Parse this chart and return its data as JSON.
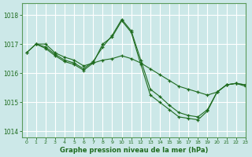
{
  "background_color": "#cce8e8",
  "grid_color": "#ffffff",
  "line_color": "#1e6b1e",
  "marker_color": "#1e6b1e",
  "xlabel": "Graphe pression niveau de la mer (hPa)",
  "xlim": [
    -0.5,
    23
  ],
  "ylim": [
    1013.8,
    1018.4
  ],
  "yticks": [
    1014,
    1015,
    1016,
    1017,
    1018
  ],
  "xticks": [
    0,
    1,
    2,
    3,
    4,
    5,
    6,
    7,
    8,
    9,
    10,
    11,
    12,
    13,
    14,
    15,
    16,
    17,
    18,
    19,
    20,
    21,
    22,
    23
  ],
  "series": [
    {
      "x": [
        0,
        1,
        2,
        3,
        4,
        5,
        6,
        7,
        8,
        9,
        10,
        11,
        12,
        13,
        14,
        15,
        16,
        17,
        18,
        19,
        20,
        21,
        22,
        23
      ],
      "y": [
        1016.7,
        1017.0,
        1017.0,
        1016.7,
        1016.55,
        1016.45,
        1016.25,
        1016.35,
        1016.45,
        1016.5,
        1016.6,
        1016.5,
        1016.35,
        1016.15,
        1015.95,
        1015.75,
        1015.55,
        1015.45,
        1015.35,
        1015.25,
        1015.35,
        1015.6,
        1015.65,
        1015.6
      ]
    },
    {
      "x": [
        0,
        1,
        2,
        3,
        4,
        5,
        6,
        7,
        8,
        9,
        10,
        11,
        12,
        13,
        14,
        15,
        16,
        17,
        18,
        19,
        20,
        21,
        22,
        23
      ],
      "y": [
        1016.7,
        1017.0,
        1016.9,
        1016.65,
        1016.45,
        1016.35,
        1016.15,
        1016.4,
        1016.9,
        1017.3,
        1017.85,
        1017.45,
        1016.45,
        1015.45,
        1015.2,
        1014.9,
        1014.65,
        1014.55,
        1014.5,
        1014.75,
        1015.35,
        1015.6,
        1015.65,
        1015.6
      ]
    },
    {
      "x": [
        1,
        2,
        3,
        4,
        5,
        6,
        7,
        8,
        9,
        10,
        11,
        12,
        13,
        14,
        15,
        16,
        17,
        18,
        19,
        20,
        21,
        22,
        23
      ],
      "y": [
        1017.0,
        1016.85,
        1016.6,
        1016.4,
        1016.3,
        1016.1,
        1016.35,
        1017.0,
        1017.25,
        1017.8,
        1017.4,
        1016.3,
        1015.25,
        1015.0,
        1014.75,
        1014.5,
        1014.45,
        1014.4,
        1014.7,
        1015.35,
        1015.6,
        1015.65,
        1015.55
      ]
    }
  ]
}
